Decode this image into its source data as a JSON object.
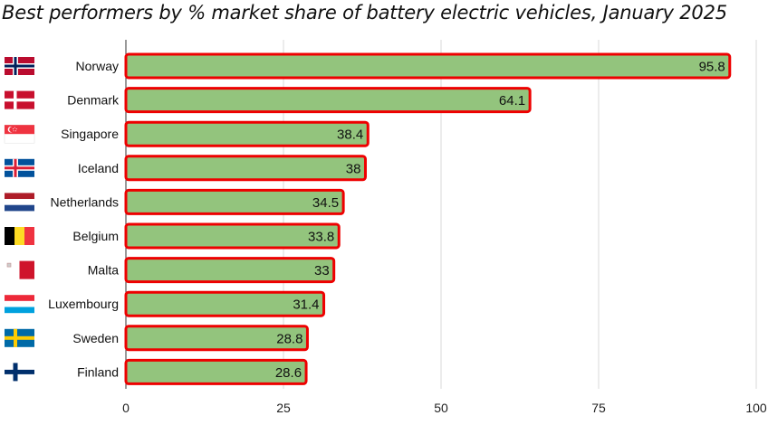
{
  "chart_data": {
    "type": "bar",
    "orientation": "horizontal",
    "title": "Best performers by % market share of battery electric vehicles, January 2025",
    "categories": [
      "Norway",
      "Denmark",
      "Singapore",
      "Iceland",
      "Netherlands",
      "Belgium",
      "Malta",
      "Luxembourg",
      "Sweden",
      "Finland"
    ],
    "values": [
      95.8,
      64.1,
      38.4,
      38,
      34.5,
      33.8,
      33,
      31.4,
      28.8,
      28.6
    ],
    "value_labels": [
      "95.8",
      "64.1",
      "38.4",
      "38",
      "34.5",
      "33.8",
      "33",
      "31.4",
      "28.8",
      "28.6"
    ],
    "xlim": [
      0,
      100
    ],
    "xticks": [
      0,
      25,
      50,
      75,
      100
    ],
    "xlabel": "",
    "ylabel": "",
    "grid": "vertical",
    "legend": "none",
    "colors": {
      "bar_fill": "#93c47d",
      "bar_outline": "#ee0000",
      "grid": "#d9d9d9",
      "axis": "#333333"
    },
    "category_icons": [
      "norway-flag-icon",
      "denmark-flag-icon",
      "singapore-flag-icon",
      "iceland-flag-icon",
      "netherlands-flag-icon",
      "belgium-flag-icon",
      "malta-flag-icon",
      "luxembourg-flag-icon",
      "sweden-flag-icon",
      "finland-flag-icon"
    ]
  }
}
